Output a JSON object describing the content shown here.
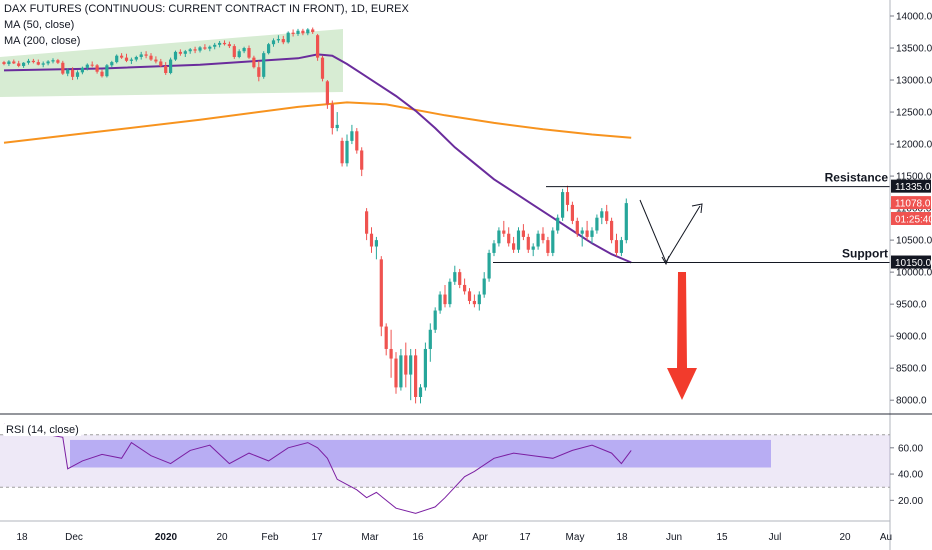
{
  "legend": {
    "title": "DAX FUTURES (CONTINUOUS: CURRENT CONTRACT IN FRONT), 1D, EUREX",
    "ma50": "MA (50, close)",
    "ma200": "MA (200, close)",
    "rsi": "RSI (14, close)"
  },
  "colors": {
    "up": "#26a69a",
    "down": "#ef5350",
    "ma50": "#6a2c9c",
    "ma200": "#f7931e",
    "channel_fill": "#d7ecd3",
    "rsi_line": "#7b1fa2",
    "rsi_band": "#b39ddb",
    "rsi_box": "#8c7cf0",
    "arrow": "#f23b2c"
  },
  "chart_data": [
    {
      "type": "candlestick",
      "title": "",
      "x_tick_labels": [
        "18",
        "Dec",
        "2020",
        "20",
        "Feb",
        "17",
        "Mar",
        "16",
        "Apr",
        "17",
        "May",
        "18",
        "Jun",
        "15",
        "Jul",
        "20",
        "Au"
      ],
      "y_tick_labels": [
        "8000.0",
        "8500.0",
        "9000.0",
        "9500.0",
        "10000.0",
        "10500.0",
        "11000.0",
        "11500.0",
        "12000.0",
        "12500.0",
        "13000.0",
        "13500.0",
        "14000.0"
      ],
      "ylim": [
        7800,
        14250
      ],
      "grid": false,
      "price_labels": [
        {
          "text": "11335.0",
          "value": 11335,
          "style": "dark"
        },
        {
          "text": "11078.0",
          "value": 11078,
          "style": "red"
        },
        {
          "text": "01:25:40",
          "value": 10830,
          "style": "red"
        },
        {
          "text": "10150.0",
          "value": 10150,
          "style": "dark"
        }
      ],
      "annotations": [
        {
          "text": "Resistance",
          "value": 11335
        },
        {
          "text": "Support",
          "value": 10150
        }
      ],
      "candles": [
        [
          13280,
          13300,
          13230,
          13250
        ],
        [
          13250,
          13310,
          13220,
          13290
        ],
        [
          13290,
          13320,
          13250,
          13260
        ],
        [
          13260,
          13300,
          13200,
          13220
        ],
        [
          13220,
          13280,
          13190,
          13270
        ],
        [
          13270,
          13330,
          13240,
          13300
        ],
        [
          13300,
          13330,
          13260,
          13280
        ],
        [
          13280,
          13320,
          13230,
          13240
        ],
        [
          13240,
          13290,
          13200,
          13260
        ],
        [
          13260,
          13310,
          13230,
          13290
        ],
        [
          13290,
          13340,
          13260,
          13310
        ],
        [
          13310,
          13330,
          13250,
          13270
        ],
        [
          13270,
          13300,
          13080,
          13100
        ],
        [
          13100,
          13180,
          13060,
          13160
        ],
        [
          13160,
          13200,
          13000,
          13050
        ],
        [
          13050,
          13150,
          13010,
          13120
        ],
        [
          13120,
          13210,
          13090,
          13190
        ],
        [
          13190,
          13260,
          13150,
          13240
        ],
        [
          13240,
          13290,
          13200,
          13230
        ],
        [
          13230,
          13250,
          13100,
          13130
        ],
        [
          13130,
          13160,
          13040,
          13060
        ],
        [
          13060,
          13250,
          13040,
          13230
        ],
        [
          13230,
          13300,
          13200,
          13280
        ],
        [
          13280,
          13400,
          13260,
          13380
        ],
        [
          13380,
          13420,
          13330,
          13350
        ],
        [
          13350,
          13410,
          13280,
          13300
        ],
        [
          13300,
          13350,
          13250,
          13320
        ],
        [
          13320,
          13380,
          13290,
          13360
        ],
        [
          13360,
          13440,
          13320,
          13400
        ],
        [
          13400,
          13450,
          13340,
          13380
        ],
        [
          13380,
          13420,
          13300,
          13320
        ],
        [
          13320,
          13370,
          13260,
          13290
        ],
        [
          13290,
          13330,
          13200,
          13220
        ],
        [
          13220,
          13280,
          13080,
          13110
        ],
        [
          13110,
          13350,
          13090,
          13320
        ],
        [
          13320,
          13460,
          13300,
          13440
        ],
        [
          13440,
          13480,
          13380,
          13410
        ],
        [
          13410,
          13470,
          13360,
          13450
        ],
        [
          13450,
          13500,
          13410,
          13480
        ],
        [
          13480,
          13520,
          13420,
          13460
        ],
        [
          13460,
          13530,
          13430,
          13510
        ],
        [
          13510,
          13560,
          13470,
          13490
        ],
        [
          13490,
          13540,
          13450,
          13520
        ],
        [
          13520,
          13580,
          13480,
          13550
        ],
        [
          13550,
          13610,
          13510,
          13580
        ],
        [
          13580,
          13620,
          13540,
          13560
        ],
        [
          13560,
          13600,
          13500,
          13530
        ],
        [
          13530,
          13560,
          13330,
          13360
        ],
        [
          13360,
          13480,
          13340,
          13450
        ],
        [
          13450,
          13520,
          13420,
          13500
        ],
        [
          13500,
          13540,
          13330,
          13350
        ],
        [
          13350,
          13380,
          13180,
          13200
        ],
        [
          13200,
          13300,
          12980,
          13050
        ],
        [
          13050,
          13450,
          13020,
          13420
        ],
        [
          13420,
          13580,
          13400,
          13560
        ],
        [
          13560,
          13650,
          13520,
          13620
        ],
        [
          13620,
          13700,
          13580,
          13640
        ],
        [
          13640,
          13690,
          13560,
          13590
        ],
        [
          13590,
          13760,
          13570,
          13740
        ],
        [
          13740,
          13790,
          13680,
          13720
        ],
        [
          13720,
          13800,
          13690,
          13770
        ],
        [
          13770,
          13800,
          13700,
          13730
        ],
        [
          13730,
          13810,
          13700,
          13790
        ],
        [
          13790,
          13820,
          13720,
          13750
        ],
        [
          13700,
          13720,
          13300,
          13350
        ],
        [
          13350,
          13380,
          12980,
          13020
        ],
        [
          12980,
          13000,
          12550,
          12620
        ],
        [
          12620,
          12680,
          12150,
          12250
        ],
        [
          12250,
          12500,
          12200,
          12300
        ],
        [
          12050,
          12100,
          11650,
          11700
        ],
        [
          11700,
          12150,
          11650,
          12050
        ],
        [
          12050,
          12300,
          12000,
          12200
        ],
        [
          12200,
          12250,
          11850,
          11900
        ],
        [
          11900,
          11950,
          11500,
          11600
        ],
        [
          10950,
          11000,
          10500,
          10600
        ],
        [
          10600,
          10700,
          10300,
          10400
        ],
        [
          10400,
          10550,
          10200,
          10500
        ],
        [
          10200,
          10250,
          9000,
          9150
        ],
        [
          9150,
          9200,
          8700,
          8800
        ],
        [
          8800,
          9100,
          8350,
          8650
        ],
        [
          8650,
          8750,
          8100,
          8200
        ],
        [
          8200,
          8800,
          8150,
          8700
        ],
        [
          8700,
          8900,
          8200,
          8400
        ],
        [
          8400,
          8800,
          8000,
          8700
        ],
        [
          8700,
          8800,
          7950,
          8050
        ],
        [
          8050,
          8250,
          7950,
          8200
        ],
        [
          8200,
          8900,
          8150,
          8800
        ],
        [
          8800,
          9200,
          8600,
          9100
        ],
        [
          9100,
          9450,
          9050,
          9400
        ],
        [
          9400,
          9700,
          9350,
          9650
        ],
        [
          9650,
          9800,
          9450,
          9500
        ],
        [
          9500,
          9900,
          9450,
          9850
        ],
        [
          9850,
          10100,
          9800,
          10000
        ],
        [
          10000,
          10050,
          9750,
          9800
        ],
        [
          9800,
          9900,
          9650,
          9700
        ],
        [
          9700,
          9750,
          9500,
          9550
        ],
        [
          9550,
          9650,
          9450,
          9500
        ],
        [
          9500,
          9700,
          9400,
          9650
        ],
        [
          9650,
          10000,
          9600,
          9900
        ],
        [
          9900,
          10350,
          9850,
          10300
        ],
        [
          10300,
          10500,
          10250,
          10450
        ],
        [
          10450,
          10700,
          10400,
          10650
        ],
        [
          10650,
          10800,
          10550,
          10600
        ],
        [
          10600,
          10700,
          10400,
          10450
        ],
        [
          10450,
          10550,
          10300,
          10350
        ],
        [
          10350,
          10700,
          10300,
          10650
        ],
        [
          10650,
          10750,
          10500,
          10550
        ],
        [
          10550,
          10600,
          10300,
          10350
        ],
        [
          10350,
          10450,
          10250,
          10400
        ],
        [
          10400,
          10650,
          10350,
          10600
        ],
        [
          10600,
          10700,
          10450,
          10500
        ],
        [
          10500,
          10550,
          10250,
          10300
        ],
        [
          10300,
          10700,
          10250,
          10650
        ],
        [
          10650,
          10900,
          10600,
          10850
        ],
        [
          10850,
          11300,
          10800,
          11250
        ],
        [
          11250,
          11350,
          10950,
          11050
        ],
        [
          11050,
          11100,
          10750,
          10800
        ],
        [
          10800,
          10850,
          10550,
          10600
        ],
        [
          10600,
          10700,
          10400,
          10650
        ],
        [
          10650,
          10800,
          10500,
          10550
        ],
        [
          10550,
          10700,
          10450,
          10650
        ],
        [
          10650,
          10900,
          10600,
          10850
        ],
        [
          10850,
          11000,
          10750,
          10950
        ],
        [
          10950,
          11050,
          10750,
          10800
        ],
        [
          10800,
          10850,
          10450,
          10500
        ],
        [
          10500,
          10600,
          10250,
          10300
        ],
        [
          10300,
          10550,
          10250,
          10500
        ],
        [
          10500,
          11150,
          10450,
          11078
        ]
      ],
      "ma50": [
        [
          0,
          13150
        ],
        [
          20,
          13180
        ],
        [
          40,
          13240
        ],
        [
          50,
          13290
        ],
        [
          60,
          13340
        ],
        [
          64,
          13400
        ],
        [
          67,
          13380
        ],
        [
          70,
          13250
        ],
        [
          73,
          13100
        ],
        [
          76,
          12950
        ],
        [
          80,
          12750
        ],
        [
          84,
          12520
        ],
        [
          88,
          12250
        ],
        [
          92,
          11950
        ],
        [
          96,
          11700
        ],
        [
          100,
          11450
        ],
        [
          104,
          11250
        ],
        [
          108,
          11050
        ],
        [
          112,
          10850
        ],
        [
          116,
          10650
        ],
        [
          120,
          10450
        ],
        [
          124,
          10280
        ],
        [
          128,
          10150
        ]
      ],
      "ma200": [
        [
          0,
          12020
        ],
        [
          20,
          12200
        ],
        [
          40,
          12380
        ],
        [
          60,
          12580
        ],
        [
          70,
          12650
        ],
        [
          78,
          12620
        ],
        [
          90,
          12450
        ],
        [
          100,
          12330
        ],
        [
          110,
          12230
        ],
        [
          120,
          12150
        ],
        [
          128,
          12100
        ]
      ],
      "rsi": {
        "y_tick_labels": [
          "20.00",
          "40.00",
          "60.00"
        ],
        "ylim": [
          5,
          85
        ],
        "band": [
          30,
          70
        ],
        "values": [
          [
            0,
            78
          ],
          [
            6,
            72
          ],
          [
            12,
            68
          ],
          [
            13,
            44
          ],
          [
            16,
            50
          ],
          [
            20,
            55
          ],
          [
            24,
            52
          ],
          [
            26,
            64
          ],
          [
            30,
            54
          ],
          [
            34,
            48
          ],
          [
            38,
            58
          ],
          [
            42,
            62
          ],
          [
            46,
            48
          ],
          [
            50,
            56
          ],
          [
            54,
            50
          ],
          [
            58,
            60
          ],
          [
            62,
            64
          ],
          [
            64,
            60
          ],
          [
            66,
            52
          ],
          [
            68,
            36
          ],
          [
            72,
            28
          ],
          [
            74,
            22
          ],
          [
            76,
            26
          ],
          [
            80,
            14
          ],
          [
            84,
            10
          ],
          [
            88,
            15
          ],
          [
            90,
            22
          ],
          [
            94,
            38
          ],
          [
            96,
            42
          ],
          [
            100,
            52
          ],
          [
            104,
            56
          ],
          [
            108,
            54
          ],
          [
            112,
            52
          ],
          [
            116,
            58
          ],
          [
            120,
            62
          ],
          [
            124,
            56
          ],
          [
            126,
            48
          ],
          [
            128,
            58
          ]
        ]
      }
    }
  ]
}
